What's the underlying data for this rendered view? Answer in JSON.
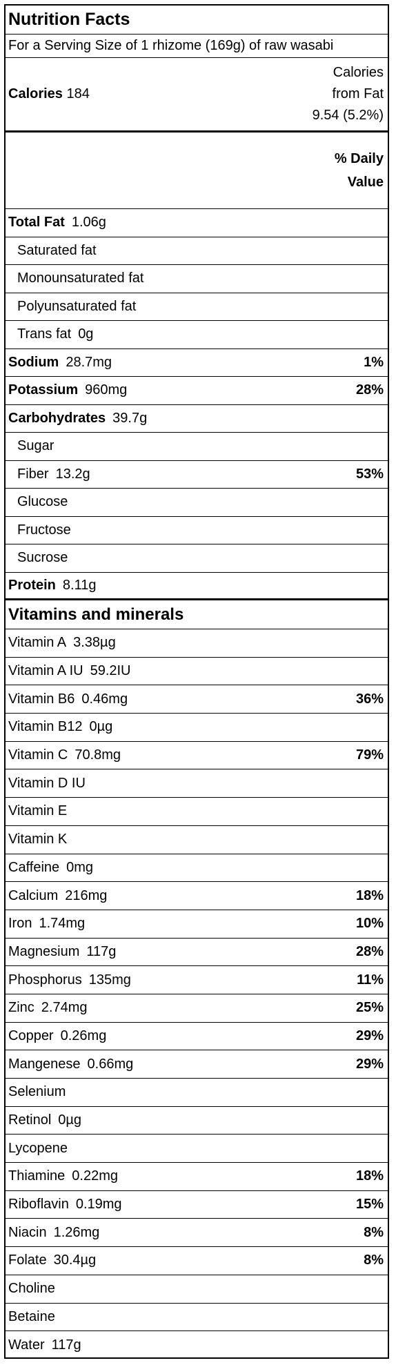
{
  "title": "Nutrition Facts",
  "serving": "For a Serving Size of 1 rhizome (169g) of raw wasabi",
  "calories": {
    "label": "Calories",
    "value": "184",
    "from_fat_line1": "Calories",
    "from_fat_line2": "from Fat",
    "from_fat_value": "9.54 (5.2%)"
  },
  "daily_value_header": {
    "line1": "% Daily",
    "line2": "Value"
  },
  "nutrients": [
    {
      "name": "Total Fat",
      "amount": "1.06g",
      "pct": "",
      "bold": true,
      "sub": false
    },
    {
      "name": "Saturated fat",
      "amount": "",
      "pct": "",
      "bold": false,
      "sub": true
    },
    {
      "name": "Monounsaturated fat",
      "amount": "",
      "pct": "",
      "bold": false,
      "sub": true
    },
    {
      "name": "Polyunsaturated fat",
      "amount": "",
      "pct": "",
      "bold": false,
      "sub": true
    },
    {
      "name": "Trans fat",
      "amount": "0g",
      "pct": "",
      "bold": false,
      "sub": true
    },
    {
      "name": "Sodium",
      "amount": "28.7mg",
      "pct": "1%",
      "bold": true,
      "sub": false
    },
    {
      "name": "Potassium",
      "amount": "960mg",
      "pct": "28%",
      "bold": true,
      "sub": false
    },
    {
      "name": "Carbohydrates",
      "amount": "39.7g",
      "pct": "",
      "bold": true,
      "sub": false
    },
    {
      "name": "Sugar",
      "amount": "",
      "pct": "",
      "bold": false,
      "sub": true
    },
    {
      "name": "Fiber",
      "amount": "13.2g",
      "pct": "53%",
      "bold": false,
      "sub": true
    },
    {
      "name": "Glucose",
      "amount": "",
      "pct": "",
      "bold": false,
      "sub": true
    },
    {
      "name": "Fructose",
      "amount": "",
      "pct": "",
      "bold": false,
      "sub": true
    },
    {
      "name": "Sucrose",
      "amount": "",
      "pct": "",
      "bold": false,
      "sub": true
    },
    {
      "name": "Protein",
      "amount": "8.11g",
      "pct": "",
      "bold": true,
      "sub": false
    }
  ],
  "vitamins_header": "Vitamins and minerals",
  "vitamins": [
    {
      "name": "Vitamin A",
      "amount": "3.38µg",
      "pct": ""
    },
    {
      "name": "Vitamin A  IU",
      "amount": "59.2IU",
      "pct": ""
    },
    {
      "name": "Vitamin B6",
      "amount": "0.46mg",
      "pct": "36%"
    },
    {
      "name": "Vitamin B12",
      "amount": "0µg",
      "pct": ""
    },
    {
      "name": "Vitamin C",
      "amount": "70.8mg",
      "pct": "79%"
    },
    {
      "name": "Vitamin D  IU",
      "amount": "",
      "pct": ""
    },
    {
      "name": "Vitamin E",
      "amount": "",
      "pct": ""
    },
    {
      "name": "Vitamin K",
      "amount": "",
      "pct": ""
    },
    {
      "name": "Caffeine",
      "amount": "0mg",
      "pct": ""
    },
    {
      "name": "Calcium",
      "amount": "216mg",
      "pct": "18%"
    },
    {
      "name": "Iron",
      "amount": "1.74mg",
      "pct": "10%"
    },
    {
      "name": "Magnesium",
      "amount": "117g",
      "pct": "28%"
    },
    {
      "name": "Phosphorus",
      "amount": "135mg",
      "pct": "11%"
    },
    {
      "name": "Zinc",
      "amount": "2.74mg",
      "pct": "25%"
    },
    {
      "name": "Copper",
      "amount": "0.26mg",
      "pct": "29%"
    },
    {
      "name": "Mangenese",
      "amount": "0.66mg",
      "pct": "29%"
    },
    {
      "name": "Selenium",
      "amount": "",
      "pct": ""
    },
    {
      "name": "Retinol",
      "amount": "0µg",
      "pct": ""
    },
    {
      "name": "Lycopene",
      "amount": "",
      "pct": ""
    },
    {
      "name": "Thiamine",
      "amount": "0.22mg",
      "pct": "18%"
    },
    {
      "name": "Riboflavin",
      "amount": "0.19mg",
      "pct": "15%"
    },
    {
      "name": "Niacin",
      "amount": "1.26mg",
      "pct": "8%"
    },
    {
      "name": "Folate",
      "amount": "30.4µg",
      "pct": "8%"
    },
    {
      "name": "Choline",
      "amount": "",
      "pct": ""
    },
    {
      "name": "Betaine",
      "amount": "",
      "pct": ""
    },
    {
      "name": "Water",
      "amount": "117g",
      "pct": ""
    }
  ]
}
